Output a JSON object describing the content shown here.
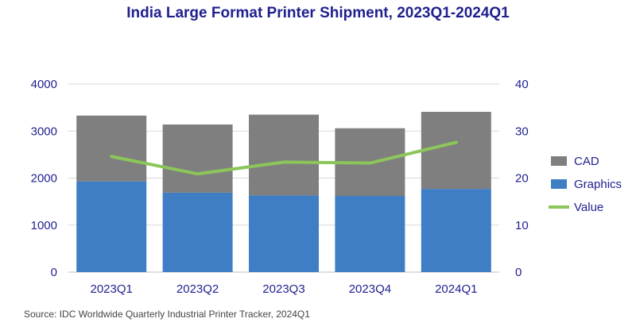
{
  "chart_data": {
    "type": "bar",
    "stacked": true,
    "title": "India Large Format Printer Shipment, 2023Q1-2024Q1",
    "categories": [
      "2023Q1",
      "2023Q2",
      "2023Q3",
      "2023Q4",
      "2024Q1"
    ],
    "series": [
      {
        "name": "Graphics",
        "kind": "bar",
        "axis": "left",
        "values": [
          1930,
          1690,
          1630,
          1620,
          1770
        ]
      },
      {
        "name": "CAD",
        "kind": "bar",
        "axis": "left",
        "values": [
          1400,
          1450,
          1720,
          1440,
          1640
        ]
      },
      {
        "name": "Value",
        "kind": "line",
        "axis": "right",
        "values": [
          24.6,
          20.9,
          23.4,
          23.2,
          27.6
        ]
      }
    ],
    "y_left": {
      "min": 0,
      "max": 4000,
      "ticks": [
        "0",
        "1000",
        "2000",
        "3000",
        "4000"
      ]
    },
    "y_right": {
      "min": 0,
      "max": 40,
      "ticks": [
        "0",
        "10",
        "20",
        "30",
        "40"
      ]
    },
    "grid": true,
    "legend_position": "right",
    "legend": [
      "CAD",
      "Graphics",
      "Value"
    ],
    "colors": {
      "CAD": "#7f7f7f",
      "Graphics": "#3f7ec4",
      "Value": "#8cc65a"
    }
  },
  "footer": {
    "source": "Source: IDC Worldwide Quarterly Industrial Printer Tracker, 2024Q1"
  }
}
